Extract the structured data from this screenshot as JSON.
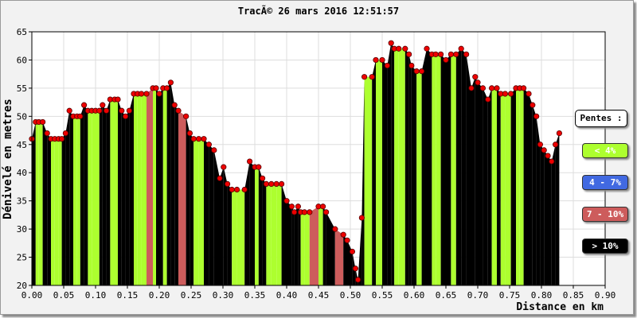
{
  "chart_data": {
    "type": "area",
    "title": "TracÃ© 26 mars 2016 12:51:57",
    "xlabel": "Distance en km",
    "ylabel": "Dénivelé en metres",
    "xlim": [
      0,
      0.9
    ],
    "ylim": [
      20,
      65
    ],
    "x_ticks": [
      "0.00",
      "0.05",
      "0.10",
      "0.15",
      "0.20",
      "0.25",
      "0.30",
      "0.35",
      "0.40",
      "0.45",
      "0.50",
      "0.55",
      "0.60",
      "0.65",
      "0.70",
      "0.75",
      "0.80",
      "0.85",
      "0.90"
    ],
    "y_ticks": [
      "20",
      "25",
      "30",
      "35",
      "40",
      "45",
      "50",
      "55",
      "60",
      "65"
    ],
    "grid": true,
    "legend_position": "right",
    "legend": {
      "title": "Pentes :",
      "items": [
        {
          "label": "< 4%",
          "color": "#adff2f",
          "text_color": "#ffffff"
        },
        {
          "label": "4 - 7%",
          "color": "#4169e1",
          "text_color": "#ffffff"
        },
        {
          "label": "7 - 10%",
          "color": "#cd5c5c",
          "text_color": "#ffffff"
        },
        {
          "label": "> 10%",
          "color": "#000000",
          "text_color": "#ffffff"
        }
      ]
    },
    "series": [
      {
        "points": [
          [
            0.0,
            46
          ],
          [
            0.006,
            49
          ],
          [
            0.011,
            49
          ],
          [
            0.017,
            49
          ],
          [
            0.024,
            47
          ],
          [
            0.03,
            46
          ],
          [
            0.036,
            46
          ],
          [
            0.042,
            46
          ],
          [
            0.047,
            46
          ],
          [
            0.053,
            47
          ],
          [
            0.059,
            51
          ],
          [
            0.065,
            50
          ],
          [
            0.071,
            50
          ],
          [
            0.076,
            50
          ],
          [
            0.082,
            52
          ],
          [
            0.088,
            51
          ],
          [
            0.094,
            51
          ],
          [
            0.1,
            51
          ],
          [
            0.106,
            51
          ],
          [
            0.111,
            52
          ],
          [
            0.117,
            51
          ],
          [
            0.123,
            53
          ],
          [
            0.13,
            53
          ],
          [
            0.135,
            53
          ],
          [
            0.141,
            51
          ],
          [
            0.147,
            50
          ],
          [
            0.153,
            51
          ],
          [
            0.16,
            54
          ],
          [
            0.166,
            54
          ],
          [
            0.172,
            54
          ],
          [
            0.18,
            54
          ],
          [
            0.19,
            55
          ],
          [
            0.195,
            55
          ],
          [
            0.2,
            54
          ],
          [
            0.206,
            55
          ],
          [
            0.212,
            55
          ],
          [
            0.218,
            56
          ],
          [
            0.224,
            52
          ],
          [
            0.23,
            51
          ],
          [
            0.242,
            50
          ],
          [
            0.248,
            47
          ],
          [
            0.254,
            46
          ],
          [
            0.262,
            46
          ],
          [
            0.27,
            46
          ],
          [
            0.278,
            45
          ],
          [
            0.286,
            44
          ],
          [
            0.295,
            39
          ],
          [
            0.301,
            41
          ],
          [
            0.307,
            38
          ],
          [
            0.314,
            37
          ],
          [
            0.322,
            37
          ],
          [
            0.334,
            37
          ],
          [
            0.342,
            42
          ],
          [
            0.35,
            41
          ],
          [
            0.356,
            41
          ],
          [
            0.362,
            39
          ],
          [
            0.368,
            38
          ],
          [
            0.376,
            38
          ],
          [
            0.384,
            38
          ],
          [
            0.392,
            38
          ],
          [
            0.4,
            35
          ],
          [
            0.408,
            34
          ],
          [
            0.412,
            33
          ],
          [
            0.418,
            34
          ],
          [
            0.422,
            33
          ],
          [
            0.428,
            33
          ],
          [
            0.436,
            33
          ],
          [
            0.45,
            34
          ],
          [
            0.457,
            34
          ],
          [
            0.462,
            33
          ],
          [
            0.476,
            30
          ],
          [
            0.489,
            29
          ],
          [
            0.495,
            28
          ],
          [
            0.503,
            26
          ],
          [
            0.508,
            23
          ],
          [
            0.512,
            21
          ],
          [
            0.518,
            32
          ],
          [
            0.522,
            57
          ],
          [
            0.534,
            57
          ],
          [
            0.54,
            60
          ],
          [
            0.55,
            60
          ],
          [
            0.558,
            59
          ],
          [
            0.564,
            63
          ],
          [
            0.569,
            62
          ],
          [
            0.576,
            62
          ],
          [
            0.586,
            62
          ],
          [
            0.592,
            61
          ],
          [
            0.596,
            59
          ],
          [
            0.604,
            58
          ],
          [
            0.612,
            58
          ],
          [
            0.62,
            62
          ],
          [
            0.628,
            61
          ],
          [
            0.634,
            61
          ],
          [
            0.642,
            61
          ],
          [
            0.65,
            60
          ],
          [
            0.658,
            61
          ],
          [
            0.666,
            61
          ],
          [
            0.674,
            62
          ],
          [
            0.682,
            61
          ],
          [
            0.69,
            55
          ],
          [
            0.696,
            57
          ],
          [
            0.7,
            56
          ],
          [
            0.708,
            55
          ],
          [
            0.716,
            53
          ],
          [
            0.722,
            55
          ],
          [
            0.73,
            55
          ],
          [
            0.736,
            54
          ],
          [
            0.743,
            54
          ],
          [
            0.752,
            54
          ],
          [
            0.76,
            55
          ],
          [
            0.766,
            55
          ],
          [
            0.772,
            55
          ],
          [
            0.78,
            54
          ],
          [
            0.786,
            52
          ],
          [
            0.792,
            50
          ],
          [
            0.798,
            45
          ],
          [
            0.804,
            44
          ],
          [
            0.81,
            43
          ],
          [
            0.816,
            42
          ],
          [
            0.822,
            45
          ],
          [
            0.828,
            47
          ]
        ]
      }
    ]
  }
}
